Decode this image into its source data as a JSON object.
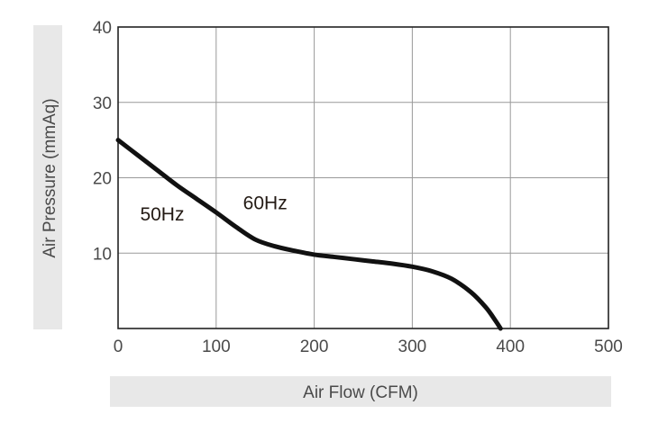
{
  "chart_data": {
    "type": "line",
    "xlabel": "Air Flow (CFM)",
    "ylabel": "Air Pressure (mmAq)",
    "xlim": [
      0,
      500
    ],
    "ylim": [
      0,
      40
    ],
    "x_ticks": [
      "0",
      "100",
      "200",
      "300",
      "400",
      "500"
    ],
    "y_ticks": [
      "10",
      "20",
      "30",
      "40"
    ],
    "grid": true,
    "series": [
      {
        "x": [
          0,
          20,
          40,
          60,
          80,
          100,
          120,
          140,
          160,
          180,
          200,
          220,
          240,
          260,
          280,
          300,
          320,
          340,
          360,
          375,
          385,
          390
        ],
        "y": [
          25,
          23.0,
          21.0,
          19.0,
          17.2,
          15.4,
          13.5,
          11.8,
          10.9,
          10.3,
          9.8,
          9.5,
          9.2,
          8.9,
          8.6,
          8.2,
          7.6,
          6.6,
          4.8,
          2.8,
          1.0,
          0
        ],
        "color": "#111111"
      }
    ],
    "annotations": [
      {
        "text": "50Hz",
        "x": 45,
        "y": 14.3
      },
      {
        "text": "60Hz",
        "x": 150,
        "y": 15.8
      }
    ],
    "colors": {
      "line": "#111111",
      "grid": "#999999",
      "frame": "#222222",
      "label_band": "#e8e8e8"
    }
  }
}
